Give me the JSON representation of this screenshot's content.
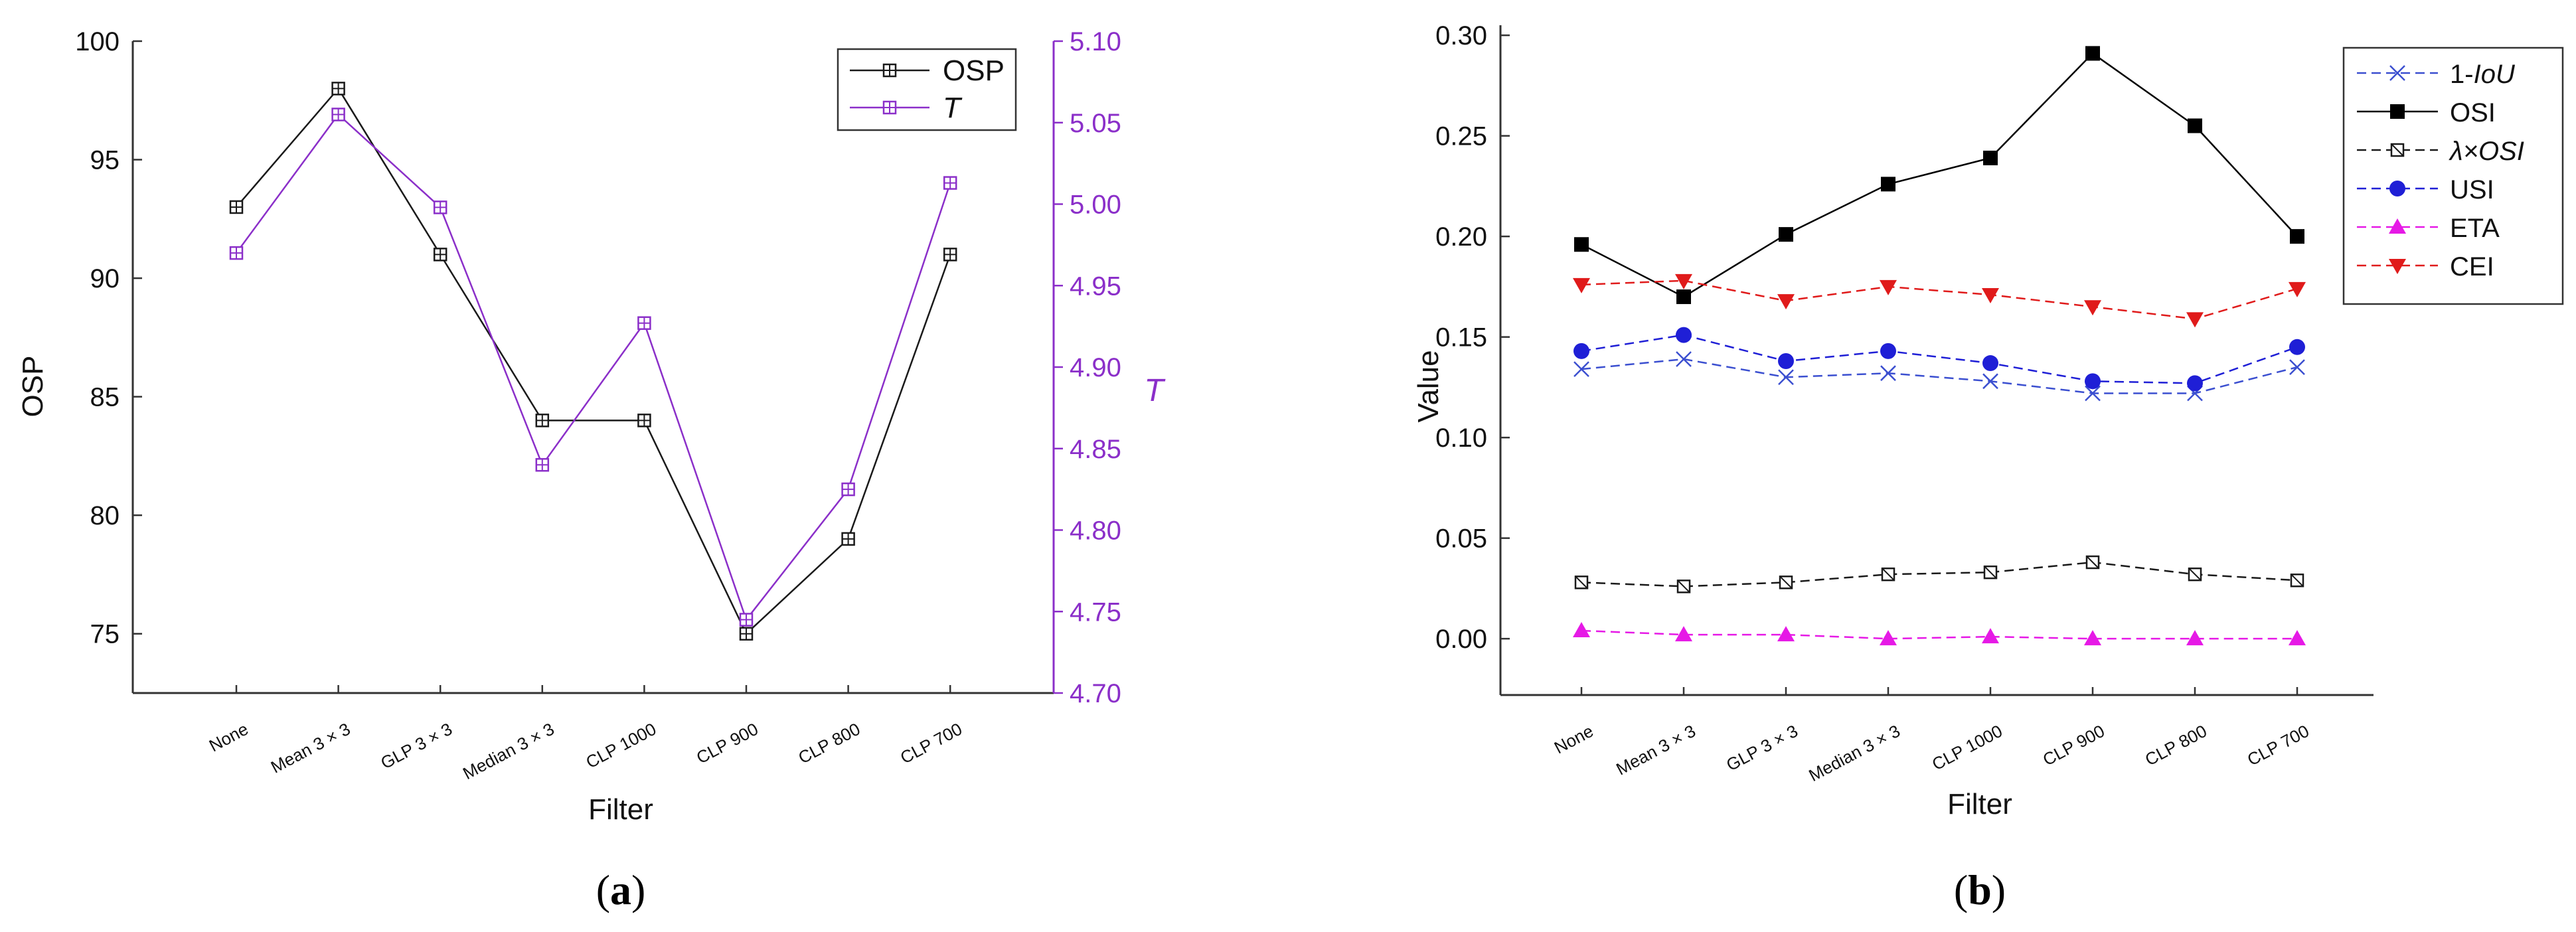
{
  "chart_data": [
    {
      "type": "line",
      "panel_label": "a",
      "categories": [
        "None",
        "Mean 3 × 3",
        "GLP 3 × 3",
        "Median 3 × 3",
        "CLP 1000",
        "CLP 900",
        "CLP 800",
        "CLP 700"
      ],
      "xlabel": "Filter",
      "ylabel": "OSP",
      "y2label": "T",
      "ylim": [
        72.5,
        100
      ],
      "y2lim": [
        4.7,
        5.1
      ],
      "yticks": [
        "75",
        "80",
        "85",
        "90",
        "95",
        "100"
      ],
      "y2ticks": [
        "4.70",
        "4.75",
        "4.80",
        "4.85",
        "4.90",
        "4.95",
        "5.00",
        "5.05",
        "5.10"
      ],
      "legend_position": "top-right",
      "series": [
        {
          "name": "OSP",
          "axis": "left",
          "color": "#1a1a1a",
          "marker": "square-cross",
          "values": [
            93,
            98,
            91,
            84,
            84,
            75,
            79,
            91
          ]
        },
        {
          "name": "T",
          "axis": "right",
          "color": "#8b2fc9",
          "marker": "square-cross",
          "values": [
            4.97,
            5.055,
            4.998,
            4.84,
            4.927,
            4.745,
            4.825,
            5.013
          ]
        }
      ]
    },
    {
      "type": "line",
      "panel_label": "b",
      "categories": [
        "None",
        "Mean 3 × 3",
        "GLP 3 × 3",
        "Median 3 × 3",
        "CLP 1000",
        "CLP 900",
        "CLP 800",
        "CLP 700"
      ],
      "xlabel": "Filter",
      "ylabel": "Value",
      "ylim": [
        -0.028,
        0.305
      ],
      "yticks": [
        "0.00",
        "0.05",
        "0.10",
        "0.15",
        "0.20",
        "0.25",
        "0.30"
      ],
      "legend_position": "top-right",
      "series": [
        {
          "name": "1-IoU",
          "color": "#3b4fd0",
          "marker": "x",
          "dash": "dash",
          "values": [
            0.134,
            0.139,
            0.13,
            0.132,
            0.128,
            0.122,
            0.122,
            0.135
          ]
        },
        {
          "name": "OSI",
          "color": "#000000",
          "marker": "square",
          "dash": "solid",
          "values": [
            0.196,
            0.17,
            0.201,
            0.226,
            0.239,
            0.291,
            0.255,
            0.2
          ]
        },
        {
          "name": "λ×OSI",
          "color": "#1a1a1a",
          "marker": "square-x",
          "dash": "dash",
          "values": [
            0.028,
            0.026,
            0.028,
            0.032,
            0.033,
            0.038,
            0.032,
            0.029
          ]
        },
        {
          "name": "USI",
          "color": "#1f1fd6",
          "marker": "circle",
          "dash": "dash",
          "values": [
            0.143,
            0.151,
            0.138,
            0.143,
            0.137,
            0.128,
            0.127,
            0.145
          ]
        },
        {
          "name": "ETA",
          "color": "#e619e6",
          "marker": "triangle-up",
          "dash": "dash",
          "values": [
            0.004,
            0.002,
            0.002,
            0.0,
            0.001,
            0.0,
            0.0,
            0.0
          ]
        },
        {
          "name": "CEI",
          "color": "#e01b1b",
          "marker": "triangle-down",
          "dash": "dash",
          "values": [
            0.176,
            0.178,
            0.168,
            0.175,
            0.171,
            0.165,
            0.159,
            0.174
          ]
        }
      ]
    }
  ]
}
